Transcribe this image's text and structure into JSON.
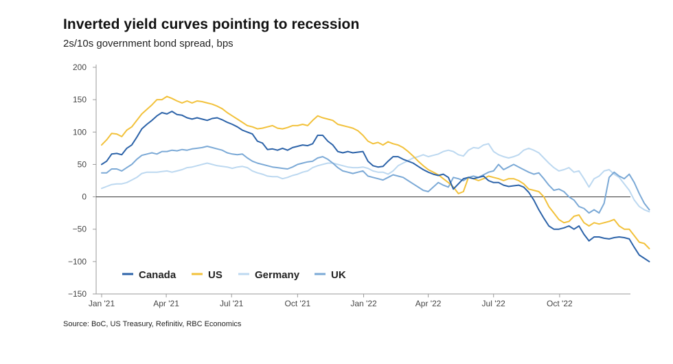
{
  "header": {
    "title": "Inverted yield curves pointing to recession",
    "subtitle": "2s/10s government bond spread, bps"
  },
  "footer": {
    "source": "Source: BoC, US Treasury, Refinitiv, RBC Economics"
  },
  "chart_data": {
    "type": "line",
    "title": "Inverted yield curves pointing to recession",
    "subtitle": "2s/10s government bond spread, bps",
    "ylim": [
      -150,
      200
    ],
    "y_ticks": [
      200,
      150,
      100,
      50,
      0,
      -50,
      -100,
      -150
    ],
    "y_tick_labels": [
      "200",
      "150",
      "100",
      "50",
      "0",
      "−50",
      "−100",
      "−150"
    ],
    "x_ticks": [
      "2021-01-01",
      "2021-04-01",
      "2021-07-01",
      "2021-10-01",
      "2022-01-01",
      "2022-04-01",
      "2022-07-01",
      "2022-10-01"
    ],
    "x_tick_labels": [
      "Jan '21",
      "Apr '21",
      "Jul '21",
      "Oct '21",
      "Jan '22",
      "Apr '22",
      "Jul '22",
      "Oct '22"
    ],
    "xlim": [
      "2021-01-01",
      "2022-12-31"
    ],
    "grid": false,
    "zero_line": true,
    "legend_position": "bottom-left",
    "x_frequency": "weekly",
    "x_start": "2021-01-01",
    "series": [
      {
        "name": "Canada",
        "color": "#2b62a8",
        "values": [
          50,
          55,
          66,
          67,
          65,
          75,
          80,
          92,
          105,
          112,
          118,
          125,
          130,
          128,
          132,
          127,
          126,
          122,
          120,
          122,
          120,
          118,
          121,
          122,
          119,
          115,
          112,
          108,
          103,
          100,
          97,
          86,
          83,
          73,
          74,
          72,
          75,
          72,
          76,
          78,
          80,
          79,
          82,
          95,
          95,
          86,
          80,
          70,
          68,
          70,
          68,
          69,
          70,
          55,
          48,
          46,
          47,
          55,
          62,
          62,
          58,
          55,
          52,
          47,
          42,
          38,
          35,
          33,
          35,
          30,
          12,
          20,
          28,
          30,
          28,
          30,
          32,
          25,
          22,
          22,
          18,
          16,
          17,
          18,
          15,
          7,
          -5,
          -20,
          -33,
          -45,
          -50,
          -50,
          -48,
          -45,
          -50,
          -45,
          -58,
          -68,
          -62,
          -62,
          -64,
          -65,
          -63,
          -62,
          -63,
          -65,
          -78,
          -90,
          -95,
          -100
        ]
      },
      {
        "name": "US",
        "color": "#f2c13a",
        "values": [
          80,
          88,
          98,
          97,
          93,
          103,
          108,
          118,
          128,
          135,
          142,
          150,
          150,
          155,
          152,
          148,
          145,
          148,
          145,
          148,
          147,
          145,
          143,
          140,
          136,
          130,
          125,
          120,
          115,
          110,
          108,
          105,
          106,
          108,
          110,
          106,
          105,
          107,
          110,
          110,
          112,
          110,
          118,
          125,
          122,
          120,
          118,
          112,
          110,
          108,
          106,
          102,
          95,
          86,
          82,
          84,
          80,
          85,
          82,
          80,
          76,
          70,
          63,
          55,
          48,
          42,
          38,
          34,
          28,
          22,
          15,
          5,
          8,
          30,
          28,
          25,
          28,
          32,
          30,
          28,
          25,
          28,
          28,
          25,
          20,
          12,
          10,
          8,
          0,
          -15,
          -25,
          -35,
          -40,
          -38,
          -30,
          -28,
          -40,
          -45,
          -40,
          -42,
          -40,
          -38,
          -35,
          -45,
          -50,
          -50,
          -60,
          -70,
          -72,
          -80
        ]
      },
      {
        "name": "Germany",
        "color": "#bcd8f0",
        "values": [
          13,
          16,
          19,
          20,
          20,
          22,
          26,
          30,
          36,
          38,
          38,
          38,
          39,
          40,
          38,
          40,
          42,
          45,
          46,
          48,
          50,
          52,
          50,
          48,
          47,
          46,
          44,
          46,
          47,
          45,
          40,
          37,
          35,
          32,
          31,
          31,
          28,
          30,
          33,
          35,
          38,
          40,
          45,
          48,
          50,
          52,
          52,
          50,
          48,
          46,
          45,
          45,
          46,
          44,
          40,
          38,
          38,
          35,
          40,
          48,
          52,
          56,
          60,
          62,
          65,
          62,
          64,
          66,
          70,
          72,
          70,
          65,
          63,
          72,
          76,
          75,
          80,
          82,
          70,
          65,
          62,
          60,
          62,
          65,
          72,
          75,
          72,
          68,
          60,
          52,
          45,
          40,
          42,
          45,
          38,
          40,
          28,
          15,
          28,
          32,
          40,
          42,
          35,
          30,
          20,
          10,
          -5,
          -15,
          -20,
          -23
        ]
      },
      {
        "name": "UK",
        "color": "#7ba9d6",
        "values": [
          37,
          37,
          43,
          43,
          40,
          45,
          50,
          58,
          64,
          66,
          68,
          66,
          70,
          70,
          72,
          71,
          73,
          72,
          74,
          75,
          76,
          78,
          76,
          74,
          72,
          68,
          66,
          65,
          66,
          60,
          55,
          52,
          50,
          48,
          46,
          45,
          44,
          43,
          46,
          50,
          52,
          54,
          55,
          60,
          62,
          58,
          52,
          45,
          40,
          38,
          36,
          38,
          40,
          32,
          30,
          28,
          26,
          30,
          34,
          32,
          30,
          25,
          20,
          15,
          10,
          8,
          15,
          22,
          18,
          15,
          30,
          28,
          25,
          30,
          32,
          30,
          34,
          38,
          40,
          50,
          42,
          46,
          50,
          46,
          42,
          38,
          35,
          37,
          28,
          18,
          10,
          12,
          8,
          0,
          -5,
          -15,
          -18,
          -25,
          -20,
          -25,
          -10,
          30,
          38,
          32,
          28,
          35,
          22,
          5,
          -10,
          -20
        ]
      }
    ]
  }
}
